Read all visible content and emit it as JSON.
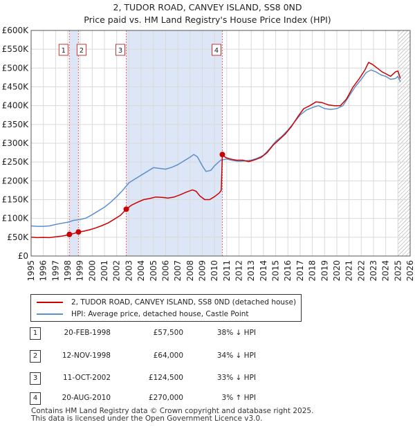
{
  "title_line1": "2, TUDOR ROAD, CANVEY ISLAND, SS8 0ND",
  "title_line2": "Price paid vs. HM Land Registry's House Price Index (HPI)",
  "colors": {
    "red": "#cc0000",
    "blue": "#5b8fcc",
    "shade": "#dde6f7",
    "grid": "#d9d9d9"
  },
  "chart_data": {
    "type": "line",
    "title": "2, TUDOR ROAD, CANVEY ISLAND, SS8 0ND — Price paid vs. HM Land Registry's House Price Index (HPI)",
    "xlim": [
      1995,
      2026
    ],
    "ylim": [
      0,
      600000
    ],
    "x_ticks": [
      "1995",
      "1996",
      "1997",
      "1998",
      "1999",
      "2000",
      "2001",
      "2002",
      "2003",
      "2004",
      "2005",
      "2006",
      "2007",
      "2008",
      "2009",
      "2010",
      "2011",
      "2012",
      "2013",
      "2014",
      "2015",
      "2016",
      "2017",
      "2018",
      "2019",
      "2020",
      "2021",
      "2022",
      "2023",
      "2024",
      "2025",
      "2026"
    ],
    "y_ticks": [
      0,
      50000,
      100000,
      150000,
      200000,
      250000,
      300000,
      350000,
      400000,
      450000,
      500000,
      550000,
      600000
    ],
    "y_tick_labels": [
      "£0",
      "£50K",
      "£100K",
      "£150K",
      "£200K",
      "£250K",
      "£300K",
      "£350K",
      "£400K",
      "£450K",
      "£500K",
      "£550K",
      "£600K"
    ],
    "shaded_ranges": [
      [
        1998.13,
        1998.87
      ],
      [
        2002.78,
        2010.64
      ]
    ],
    "hatched_from": 2025.0,
    "series": [
      {
        "name": "2, TUDOR ROAD, CANVEY ISLAND, SS8 0ND (detached house)",
        "color": "#cc0000",
        "points": [
          [
            1995.0,
            50000
          ],
          [
            1995.5,
            49000
          ],
          [
            1996.0,
            49500
          ],
          [
            1996.5,
            49000
          ],
          [
            1997.0,
            51000
          ],
          [
            1997.5,
            53000
          ],
          [
            1998.0,
            56000
          ],
          [
            1998.13,
            57500
          ],
          [
            1998.5,
            60000
          ],
          [
            1998.87,
            64000
          ],
          [
            1999.3,
            66000
          ],
          [
            1999.8,
            70000
          ],
          [
            2000.3,
            75000
          ],
          [
            2000.8,
            81000
          ],
          [
            2001.3,
            88000
          ],
          [
            2001.8,
            98000
          ],
          [
            2002.3,
            108000
          ],
          [
            2002.78,
            124500
          ],
          [
            2003.2,
            135000
          ],
          [
            2003.7,
            143000
          ],
          [
            2004.2,
            150000
          ],
          [
            2004.7,
            153000
          ],
          [
            2005.2,
            157000
          ],
          [
            2005.7,
            156000
          ],
          [
            2006.2,
            154000
          ],
          [
            2006.7,
            157000
          ],
          [
            2007.2,
            163000
          ],
          [
            2007.7,
            170000
          ],
          [
            2008.2,
            176000
          ],
          [
            2008.5,
            172000
          ],
          [
            2008.8,
            160000
          ],
          [
            2009.2,
            150000
          ],
          [
            2009.6,
            150000
          ],
          [
            2010.0,
            158000
          ],
          [
            2010.4,
            168000
          ],
          [
            2010.55,
            175000
          ],
          [
            2010.64,
            270000
          ],
          [
            2010.9,
            262000
          ],
          [
            2011.3,
            258000
          ],
          [
            2011.8,
            255000
          ],
          [
            2012.3,
            255000
          ],
          [
            2012.8,
            251000
          ],
          [
            2013.3,
            256000
          ],
          [
            2013.8,
            262000
          ],
          [
            2014.3,
            275000
          ],
          [
            2014.8,
            295000
          ],
          [
            2015.3,
            310000
          ],
          [
            2015.8,
            325000
          ],
          [
            2016.3,
            345000
          ],
          [
            2016.8,
            370000
          ],
          [
            2017.3,
            392000
          ],
          [
            2017.8,
            400000
          ],
          [
            2018.3,
            410000
          ],
          [
            2018.8,
            408000
          ],
          [
            2019.3,
            402000
          ],
          [
            2019.8,
            400000
          ],
          [
            2020.3,
            400000
          ],
          [
            2020.8,
            418000
          ],
          [
            2021.3,
            448000
          ],
          [
            2021.8,
            470000
          ],
          [
            2022.3,
            495000
          ],
          [
            2022.6,
            515000
          ],
          [
            2022.9,
            510000
          ],
          [
            2023.3,
            500000
          ],
          [
            2023.7,
            490000
          ],
          [
            2024.0,
            485000
          ],
          [
            2024.4,
            478000
          ],
          [
            2024.8,
            490000
          ],
          [
            2025.0,
            492000
          ],
          [
            2025.2,
            472000
          ]
        ]
      },
      {
        "name": "HPI: Average price, detached house, Castle Point",
        "color": "#5b8fcc",
        "points": [
          [
            1995.0,
            80000
          ],
          [
            1995.5,
            79000
          ],
          [
            1996.0,
            79000
          ],
          [
            1996.5,
            80000
          ],
          [
            1997.0,
            84000
          ],
          [
            1997.5,
            87000
          ],
          [
            1998.0,
            90000
          ],
          [
            1998.5,
            95000
          ],
          [
            1999.0,
            97000
          ],
          [
            1999.5,
            101000
          ],
          [
            2000.0,
            110000
          ],
          [
            2000.5,
            120000
          ],
          [
            2001.0,
            130000
          ],
          [
            2001.5,
            143000
          ],
          [
            2002.0,
            158000
          ],
          [
            2002.5,
            175000
          ],
          [
            2003.0,
            195000
          ],
          [
            2003.5,
            205000
          ],
          [
            2004.0,
            215000
          ],
          [
            2004.5,
            225000
          ],
          [
            2005.0,
            235000
          ],
          [
            2005.5,
            233000
          ],
          [
            2006.0,
            231000
          ],
          [
            2006.5,
            236000
          ],
          [
            2007.0,
            243000
          ],
          [
            2007.5,
            253000
          ],
          [
            2008.0,
            263000
          ],
          [
            2008.3,
            270000
          ],
          [
            2008.6,
            264000
          ],
          [
            2009.0,
            240000
          ],
          [
            2009.3,
            225000
          ],
          [
            2009.7,
            228000
          ],
          [
            2010.0,
            240000
          ],
          [
            2010.5,
            255000
          ],
          [
            2011.0,
            258000
          ],
          [
            2011.5,
            254000
          ],
          [
            2012.0,
            252000
          ],
          [
            2012.5,
            253000
          ],
          [
            2013.0,
            255000
          ],
          [
            2013.5,
            260000
          ],
          [
            2014.0,
            268000
          ],
          [
            2014.5,
            285000
          ],
          [
            2015.0,
            305000
          ],
          [
            2015.5,
            318000
          ],
          [
            2016.0,
            335000
          ],
          [
            2016.5,
            355000
          ],
          [
            2017.0,
            375000
          ],
          [
            2017.5,
            388000
          ],
          [
            2018.0,
            395000
          ],
          [
            2018.5,
            400000
          ],
          [
            2019.0,
            392000
          ],
          [
            2019.5,
            390000
          ],
          [
            2020.0,
            392000
          ],
          [
            2020.5,
            400000
          ],
          [
            2021.0,
            425000
          ],
          [
            2021.5,
            450000
          ],
          [
            2022.0,
            470000
          ],
          [
            2022.4,
            488000
          ],
          [
            2022.8,
            495000
          ],
          [
            2023.2,
            490000
          ],
          [
            2023.6,
            482000
          ],
          [
            2024.0,
            478000
          ],
          [
            2024.4,
            470000
          ],
          [
            2024.8,
            472000
          ],
          [
            2025.0,
            478000
          ],
          [
            2025.2,
            463000
          ]
        ]
      }
    ],
    "sale_markers": [
      {
        "label": "1",
        "x": 1998.13,
        "y": 57500
      },
      {
        "label": "2",
        "x": 1998.87,
        "y": 64000
      },
      {
        "label": "3",
        "x": 2002.78,
        "y": 124500
      },
      {
        "label": "4",
        "x": 2010.64,
        "y": 270000
      }
    ]
  },
  "legend": {
    "red_label": "2, TUDOR ROAD, CANVEY ISLAND, SS8 0ND (detached house)",
    "blue_label": "HPI: Average price, detached house, Castle Point"
  },
  "sales": [
    {
      "num": "1",
      "date": "20-FEB-1998",
      "price": "£57,500",
      "hpi": "38% ↓ HPI"
    },
    {
      "num": "2",
      "date": "12-NOV-1998",
      "price": "£64,000",
      "hpi": "34% ↓ HPI"
    },
    {
      "num": "3",
      "date": "11-OCT-2002",
      "price": "£124,500",
      "hpi": "33% ↓ HPI"
    },
    {
      "num": "4",
      "date": "20-AUG-2010",
      "price": "£270,000",
      "hpi": "3% ↑ HPI"
    }
  ],
  "footer_line1": "Contains HM Land Registry data © Crown copyright and database right 2025.",
  "footer_line2": "This data is licensed under the Open Government Licence v3.0."
}
